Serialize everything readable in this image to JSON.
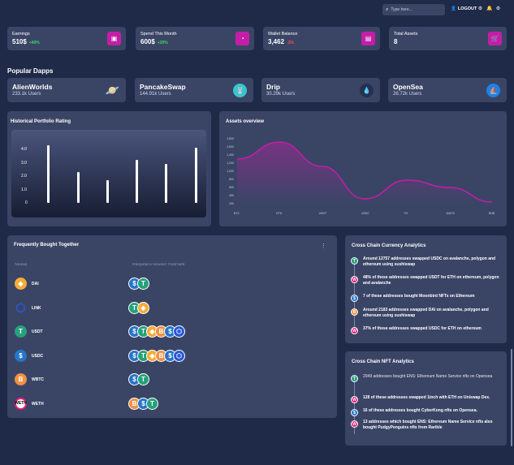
{
  "topbar": {
    "search_placeholder": "Type here...",
    "logout_label": "LOGOUT",
    "icons": [
      "user-icon",
      "gear-icon",
      "bell-icon",
      "settings-icon"
    ]
  },
  "stats": [
    {
      "label": "Earnings",
      "value": "510$",
      "delta": "+40%",
      "delta_color": "#3fd85e",
      "icon": "wallet-icon"
    },
    {
      "label": "Spend This Month",
      "value": "600$",
      "delta": "+20%",
      "delta_color": "#3fd85e",
      "icon": "pie-icon"
    },
    {
      "label": "Wallet Balance",
      "value": "3,462",
      "delta": "-3%",
      "delta_color": "#ff4a4a",
      "icon": "book-icon"
    },
    {
      "label": "Total Assets",
      "value": "8",
      "delta": "",
      "delta_color": "#3fd85e",
      "icon": "cart-icon"
    }
  ],
  "popular_dapps": {
    "title": "Popular Dapps",
    "items": [
      {
        "name": "AlienWorlds",
        "users": "233.1k Users",
        "icon": "planet-icon",
        "color": "#28a8ff"
      },
      {
        "name": "PancakeSwap",
        "users": "144.91k Users",
        "icon": "bunny-icon",
        "color": "#36c6d3"
      },
      {
        "name": "Drip",
        "users": "30.29k Users",
        "icon": "drop-icon",
        "color": "#1f2a48"
      },
      {
        "name": "OpenSea",
        "users": "26.72k Users",
        "icon": "sailboat-icon",
        "color": "#2081e2"
      }
    ]
  },
  "portfolio": {
    "title": "Historical Portfolio Rating"
  },
  "assets": {
    "title": "Assets overview"
  },
  "chart_data": [
    {
      "type": "bar",
      "title": "Historical Portfolio Rating",
      "categories": [
        "",
        "",
        "",
        "",
        "",
        ""
      ],
      "values": [
        4.3,
        2.3,
        1.7,
        3.2,
        2.9,
        4.1
      ],
      "yticks": [
        "0",
        "1.0",
        "2.0",
        "3.0",
        "4.0"
      ],
      "ylim": [
        0,
        4.5
      ],
      "color": "#ffffff",
      "xlabel": "",
      "ylabel": ""
    },
    {
      "type": "area",
      "title": "Assets overview",
      "categories": [
        "BTC",
        "ETH",
        "USDT",
        "USDC",
        "TG",
        "MATIC",
        "BNB"
      ],
      "yticks": [
        "200",
        "400",
        "600",
        "800",
        "1,000",
        "1,200",
        "1,400",
        "1,600",
        "1,800"
      ],
      "ylim": [
        200,
        1800
      ],
      "values": [
        1300,
        1720,
        1120,
        320,
        780,
        600,
        240
      ],
      "color": "#c31ea7",
      "grid": false,
      "xlabel": "",
      "ylabel": ""
    }
  ],
  "fbt": {
    "title": "Frequently Bought Together",
    "col_tokens": "TOKENS",
    "col_fbt": "FREQUENTLY BOUGHT TOGETHER",
    "rows": [
      {
        "name": "DAI",
        "icon": "dai-icon",
        "bg": "#f5ac37",
        "glyph": "◈",
        "together": [
          "usdc",
          "usdt"
        ]
      },
      {
        "name": "LINK",
        "icon": "link-icon",
        "bg": "#2a5ada",
        "glyph": "⬡",
        "together": [
          "usdt",
          "dai"
        ]
      },
      {
        "name": "USDT",
        "icon": "usdt-icon",
        "bg": "#26a17b",
        "glyph": "T",
        "together": [
          "usdc",
          "usdt",
          "dai",
          "wbtc",
          "usdc",
          "link"
        ]
      },
      {
        "name": "USDC",
        "icon": "usdc-icon",
        "bg": "#2775ca",
        "glyph": "$",
        "together": [
          "usdc",
          "usdt",
          "dai",
          "wbtc",
          "usdc",
          "link"
        ]
      },
      {
        "name": "WBTC",
        "icon": "wbtc-icon",
        "bg": "#f09242",
        "glyph": "B",
        "together": [
          "usdc",
          "usdt"
        ]
      },
      {
        "name": "WETH",
        "icon": "weth-icon",
        "bg": "#ec1c79",
        "glyph": "W",
        "together": [
          "wbtc",
          "usdc",
          "usdt"
        ]
      }
    ]
  },
  "currency_analytics": {
    "title": "Cross Chain Currency Analytics",
    "items": [
      {
        "text": "Around 12757 addresses swapped USDC on avalanche, polygon and ethereum using sushiswap",
        "icon": "usdt-icon",
        "bg": "#26a17b"
      },
      {
        "text": "48% of these addresses swapped USDT for ETH on ethereum, polygon and avalanche",
        "icon": "weth-icon",
        "bg": "#ec1c79"
      },
      {
        "text": "7 of these addresses bought Moonbird NFTs on Ethereum",
        "icon": "usdc-icon",
        "bg": "#2775ca"
      },
      {
        "text": "Around 2183 addresses swapped DAI on avalanche, polygon and ethereum using sushiswap",
        "icon": "wbtc-icon",
        "bg": "#f09242"
      },
      {
        "text": "37% of these addresses swapped USDC for ETH on ethereum",
        "icon": "weth-icon",
        "bg": "#ec1c79"
      }
    ]
  },
  "nft_analytics": {
    "title": "Cross Chain NFT Analytics",
    "items": [
      {
        "text": "2049 addresses bought ENS: Ethereum Name Service nfts on Opensea",
        "icon": "usdt-icon",
        "bg": "#26a17b",
        "light": true
      },
      {
        "text": "128 of these addresses swapped 1inch with ETH on Uniswap Dex.",
        "icon": "weth-icon",
        "bg": "#ec1c79",
        "light": false
      },
      {
        "text": "16 of these addresses bought CyberKong nfts on Opensea.",
        "icon": "usdc-icon",
        "bg": "#2775ca",
        "light": false
      },
      {
        "text": "13 addresses which bought ENS: Ethereum Name Service nfts also bought PudgyPenguins nfts from Rarible",
        "icon": "weth-icon",
        "bg": "#ec1c79",
        "light": false
      }
    ]
  }
}
